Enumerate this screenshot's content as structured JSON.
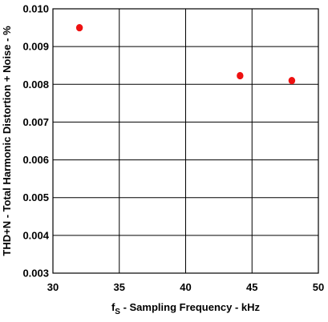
{
  "chart_data": {
    "type": "scatter",
    "xlabel_main": "f",
    "xlabel_sub": "S",
    "xlabel_rest": " - Sampling Frequency - kHz",
    "ylabel": "THD+N - Total Harmonic Distortion + Noise - %",
    "xlim": [
      30,
      50
    ],
    "ylim": [
      0.003,
      0.01
    ],
    "x_ticks": [
      30,
      35,
      40,
      45,
      50
    ],
    "y_ticks": [
      0.003,
      0.004,
      0.005,
      0.006,
      0.007,
      0.008,
      0.009,
      0.01
    ],
    "x_tick_labels": [
      "30",
      "35",
      "40",
      "45",
      "50"
    ],
    "y_tick_labels": [
      "0.003",
      "0.004",
      "0.005",
      "0.006",
      "0.007",
      "0.008",
      "0.009",
      "0.010"
    ],
    "grid": true,
    "series": [
      {
        "color": "#ee1111",
        "x": [
          32,
          44.1,
          48
        ],
        "y": [
          0.0095,
          0.00823,
          0.0081
        ]
      }
    ]
  }
}
